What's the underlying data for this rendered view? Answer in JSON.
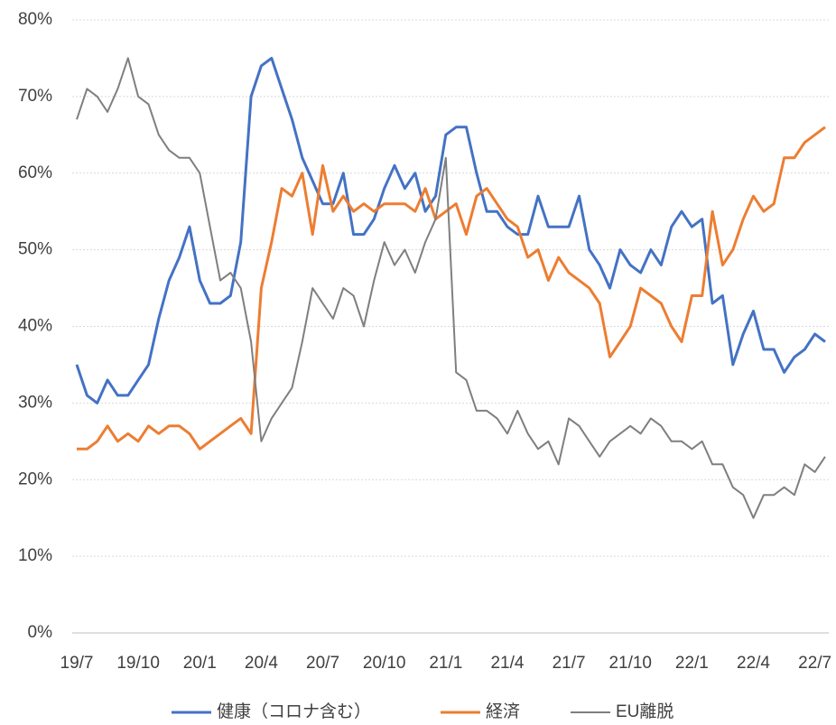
{
  "chart_data": {
    "type": "line",
    "categories": [
      "19/7",
      null,
      null,
      null,
      null,
      null,
      "19/10",
      null,
      null,
      null,
      null,
      null,
      "20/1",
      null,
      null,
      null,
      null,
      null,
      "20/4",
      null,
      null,
      null,
      null,
      null,
      "20/7",
      null,
      null,
      null,
      null,
      null,
      "20/10",
      null,
      null,
      null,
      null,
      null,
      "21/1",
      null,
      null,
      null,
      null,
      null,
      "21/4",
      null,
      null,
      null,
      null,
      null,
      "21/7",
      null,
      null,
      null,
      null,
      null,
      "21/10",
      null,
      null,
      null,
      null,
      null,
      "22/1",
      null,
      null,
      null,
      null,
      null,
      "22/4",
      null,
      null,
      null,
      null,
      null,
      "22/7",
      null
    ],
    "series": [
      {
        "name": "健康（コロナ含む）",
        "color": "#4472c4",
        "values": [
          35,
          31,
          30,
          33,
          31,
          31,
          33,
          35,
          41,
          46,
          49,
          53,
          46,
          43,
          43,
          44,
          51,
          70,
          74,
          75,
          71,
          67,
          62,
          59,
          56,
          56,
          60,
          52,
          52,
          54,
          58,
          61,
          58,
          60,
          55,
          57,
          65,
          66,
          66,
          60,
          55,
          55,
          53,
          52,
          52,
          57,
          53,
          53,
          53,
          57,
          50,
          48,
          45,
          50,
          48,
          47,
          50,
          48,
          53,
          55,
          53,
          54,
          43,
          44,
          35,
          39,
          42,
          37,
          37,
          34,
          36,
          37,
          39,
          38
        ]
      },
      {
        "name": "経済",
        "color": "#ed7d31",
        "values": [
          24,
          24,
          25,
          27,
          25,
          26,
          25,
          27,
          26,
          27,
          27,
          26,
          24,
          25,
          26,
          27,
          28,
          26,
          45,
          51,
          58,
          57,
          60,
          52,
          61,
          55,
          57,
          55,
          56,
          55,
          56,
          56,
          56,
          55,
          58,
          54,
          55,
          56,
          52,
          57,
          58,
          56,
          54,
          53,
          49,
          50,
          46,
          49,
          47,
          46,
          45,
          43,
          36,
          38,
          40,
          45,
          44,
          43,
          40,
          38,
          44,
          44,
          55,
          48,
          50,
          54,
          57,
          55,
          56,
          62,
          62,
          64,
          65,
          66
        ]
      },
      {
        "name": "EU離脱",
        "color": "#7f7f7f",
        "values": [
          67,
          71,
          70,
          68,
          71,
          75,
          70,
          69,
          65,
          63,
          62,
          62,
          60,
          53,
          46,
          47,
          45,
          38,
          25,
          28,
          30,
          32,
          38,
          45,
          43,
          41,
          45,
          44,
          40,
          46,
          51,
          48,
          50,
          47,
          51,
          54,
          62,
          34,
          33,
          29,
          29,
          28,
          26,
          29,
          26,
          24,
          25,
          22,
          28,
          27,
          25,
          23,
          25,
          26,
          27,
          26,
          28,
          27,
          25,
          25,
          24,
          25,
          22,
          22,
          19,
          18,
          15,
          18,
          18,
          19,
          18,
          22,
          21,
          23
        ]
      }
    ],
    "ylim": [
      0,
      80
    ],
    "yticks": [
      {
        "value": 0,
        "label": "0%"
      },
      {
        "value": 10,
        "label": "10%"
      },
      {
        "value": 20,
        "label": "20%"
      },
      {
        "value": 30,
        "label": "30%"
      },
      {
        "value": 40,
        "label": "40%"
      },
      {
        "value": 50,
        "label": "50%"
      },
      {
        "value": 60,
        "label": "60%"
      },
      {
        "value": 70,
        "label": "70%"
      },
      {
        "value": 80,
        "label": "80%"
      }
    ],
    "grid": true,
    "legend": "bottom"
  }
}
